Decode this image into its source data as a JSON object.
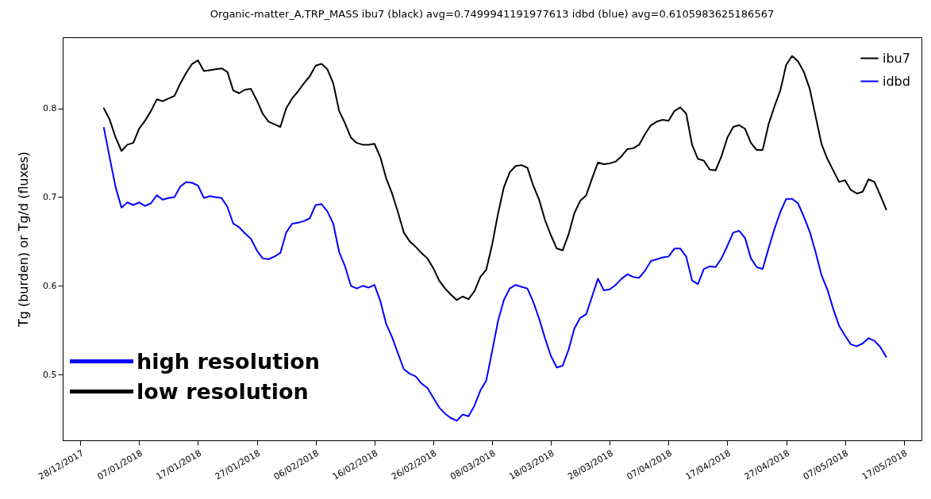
{
  "chart_data": {
    "type": "line",
    "title": "Organic-matter_A,TRP_MASS ibu7 (black) avg=0.7499941191977613 idbd (blue) avg=0.6105983625186567",
    "ylabel": "Tg (burden) or Tg/d (fluxes)",
    "x": [
      "2018-01-01",
      "2018-01-02",
      "2018-01-03",
      "2018-01-04",
      "2018-01-05",
      "2018-01-06",
      "2018-01-07",
      "2018-01-08",
      "2018-01-09",
      "2018-01-10",
      "2018-01-11",
      "2018-01-12",
      "2018-01-13",
      "2018-01-14",
      "2018-01-15",
      "2018-01-16",
      "2018-01-17",
      "2018-01-18",
      "2018-01-19",
      "2018-01-20",
      "2018-01-21",
      "2018-01-22",
      "2018-01-23",
      "2018-01-24",
      "2018-01-25",
      "2018-01-26",
      "2018-01-27",
      "2018-01-28",
      "2018-01-29",
      "2018-01-30",
      "2018-01-31",
      "2018-02-01",
      "2018-02-02",
      "2018-02-03",
      "2018-02-04",
      "2018-02-05",
      "2018-02-06",
      "2018-02-07",
      "2018-02-08",
      "2018-02-09",
      "2018-02-10",
      "2018-02-11",
      "2018-02-12",
      "2018-02-13",
      "2018-02-14",
      "2018-02-15",
      "2018-02-16",
      "2018-02-17",
      "2018-02-18",
      "2018-02-19",
      "2018-02-20",
      "2018-02-21",
      "2018-02-22",
      "2018-02-23",
      "2018-02-24",
      "2018-02-25",
      "2018-02-26",
      "2018-02-27",
      "2018-02-28",
      "2018-03-01",
      "2018-03-02",
      "2018-03-03",
      "2018-03-04",
      "2018-03-05",
      "2018-03-06",
      "2018-03-07",
      "2018-03-08",
      "2018-03-09",
      "2018-03-10",
      "2018-03-11",
      "2018-03-12",
      "2018-03-13",
      "2018-03-14",
      "2018-03-15",
      "2018-03-16",
      "2018-03-17",
      "2018-03-18",
      "2018-03-19",
      "2018-03-20",
      "2018-03-21",
      "2018-03-22",
      "2018-03-23",
      "2018-03-24",
      "2018-03-25",
      "2018-03-26",
      "2018-03-27",
      "2018-03-28",
      "2018-03-29",
      "2018-03-30",
      "2018-03-31",
      "2018-04-01",
      "2018-04-02",
      "2018-04-03",
      "2018-04-04",
      "2018-04-05",
      "2018-04-06",
      "2018-04-07",
      "2018-04-08",
      "2018-04-09",
      "2018-04-10",
      "2018-04-11",
      "2018-04-12",
      "2018-04-13",
      "2018-04-14",
      "2018-04-15",
      "2018-04-16",
      "2018-04-17",
      "2018-04-18",
      "2018-04-19",
      "2018-04-20",
      "2018-04-21",
      "2018-04-22",
      "2018-04-23",
      "2018-04-24",
      "2018-04-25",
      "2018-04-26",
      "2018-04-27",
      "2018-04-28",
      "2018-04-29",
      "2018-04-30",
      "2018-05-01",
      "2018-05-02",
      "2018-05-03",
      "2018-05-04",
      "2018-05-05",
      "2018-05-06",
      "2018-05-07",
      "2018-05-08",
      "2018-05-09",
      "2018-05-10",
      "2018-05-11",
      "2018-05-12",
      "2018-05-13",
      "2018-05-14"
    ],
    "series": [
      {
        "name": "ibu7",
        "color": "#000000",
        "values": [
          0.8,
          0.787,
          0.767,
          0.752,
          0.759,
          0.761,
          0.777,
          0.786,
          0.797,
          0.81,
          0.808,
          0.811,
          0.814,
          0.828,
          0.84,
          0.85,
          0.854,
          0.842,
          0.843,
          0.844,
          0.845,
          0.841,
          0.82,
          0.817,
          0.821,
          0.822,
          0.809,
          0.794,
          0.785,
          0.782,
          0.779,
          0.8,
          0.811,
          0.819,
          0.828,
          0.836,
          0.848,
          0.85,
          0.844,
          0.828,
          0.797,
          0.783,
          0.767,
          0.761,
          0.759,
          0.759,
          0.76,
          0.745,
          0.721,
          0.704,
          0.683,
          0.66,
          0.65,
          0.644,
          0.637,
          0.631,
          0.62,
          0.606,
          0.597,
          0.59,
          0.584,
          0.588,
          0.585,
          0.594,
          0.61,
          0.618,
          0.646,
          0.681,
          0.711,
          0.728,
          0.735,
          0.736,
          0.733,
          0.713,
          0.697,
          0.674,
          0.657,
          0.642,
          0.64,
          0.658,
          0.682,
          0.696,
          0.702,
          0.721,
          0.739,
          0.737,
          0.738,
          0.74,
          0.746,
          0.754,
          0.755,
          0.759,
          0.771,
          0.781,
          0.785,
          0.787,
          0.786,
          0.797,
          0.801,
          0.794,
          0.759,
          0.743,
          0.741,
          0.731,
          0.73,
          0.746,
          0.767,
          0.779,
          0.781,
          0.777,
          0.761,
          0.753,
          0.753,
          0.782,
          0.802,
          0.82,
          0.849,
          0.859,
          0.853,
          0.841,
          0.822,
          0.791,
          0.76,
          0.743,
          0.73,
          0.717,
          0.719,
          0.708,
          0.704,
          0.706,
          0.72,
          0.717,
          0.702,
          0.686
        ]
      },
      {
        "name": "idbd",
        "color": "#0000ff",
        "values": [
          0.778,
          0.744,
          0.711,
          0.688,
          0.694,
          0.691,
          0.694,
          0.69,
          0.693,
          0.702,
          0.697,
          0.699,
          0.7,
          0.712,
          0.717,
          0.716,
          0.713,
          0.699,
          0.701,
          0.7,
          0.699,
          0.689,
          0.67,
          0.666,
          0.659,
          0.653,
          0.64,
          0.631,
          0.63,
          0.633,
          0.637,
          0.66,
          0.67,
          0.671,
          0.673,
          0.676,
          0.691,
          0.692,
          0.684,
          0.67,
          0.638,
          0.622,
          0.6,
          0.597,
          0.6,
          0.598,
          0.601,
          0.583,
          0.557,
          0.542,
          0.524,
          0.506,
          0.501,
          0.498,
          0.49,
          0.485,
          0.474,
          0.463,
          0.456,
          0.451,
          0.448,
          0.455,
          0.453,
          0.465,
          0.482,
          0.493,
          0.526,
          0.56,
          0.584,
          0.597,
          0.601,
          0.599,
          0.597,
          0.582,
          0.563,
          0.541,
          0.521,
          0.508,
          0.51,
          0.528,
          0.552,
          0.564,
          0.568,
          0.588,
          0.608,
          0.595,
          0.596,
          0.601,
          0.608,
          0.613,
          0.61,
          0.609,
          0.617,
          0.628,
          0.63,
          0.632,
          0.633,
          0.642,
          0.642,
          0.633,
          0.606,
          0.602,
          0.619,
          0.622,
          0.621,
          0.631,
          0.645,
          0.66,
          0.662,
          0.654,
          0.631,
          0.621,
          0.619,
          0.642,
          0.664,
          0.683,
          0.698,
          0.698,
          0.693,
          0.678,
          0.661,
          0.638,
          0.612,
          0.596,
          0.574,
          0.555,
          0.544,
          0.534,
          0.532,
          0.535,
          0.541,
          0.538,
          0.531,
          0.52
        ]
      }
    ],
    "xlim": [
      "2017-12-25",
      "2018-05-20"
    ],
    "xticks": [
      {
        "value": "2017-12-28",
        "label": "28/12/2017"
      },
      {
        "value": "2018-01-07",
        "label": "07/01/2018"
      },
      {
        "value": "2018-01-17",
        "label": "17/01/2018"
      },
      {
        "value": "2018-01-27",
        "label": "27/01/2018"
      },
      {
        "value": "2018-02-06",
        "label": "06/02/2018"
      },
      {
        "value": "2018-02-16",
        "label": "16/02/2018"
      },
      {
        "value": "2018-02-26",
        "label": "26/02/2018"
      },
      {
        "value": "2018-03-08",
        "label": "08/03/2018"
      },
      {
        "value": "2018-03-18",
        "label": "18/03/2018"
      },
      {
        "value": "2018-03-28",
        "label": "28/03/2018"
      },
      {
        "value": "2018-04-07",
        "label": "07/04/2018"
      },
      {
        "value": "2018-04-17",
        "label": "17/04/2018"
      },
      {
        "value": "2018-04-27",
        "label": "27/04/2018"
      },
      {
        "value": "2018-05-07",
        "label": "07/05/2018"
      },
      {
        "value": "2018-05-17",
        "label": "17/05/2018"
      }
    ],
    "ylim": [
      0.426,
      0.88
    ],
    "yticks": [
      0.5,
      0.6,
      0.7,
      0.8
    ],
    "legend": "top right",
    "annotations": [
      "high resolution",
      "low resolution"
    ]
  }
}
